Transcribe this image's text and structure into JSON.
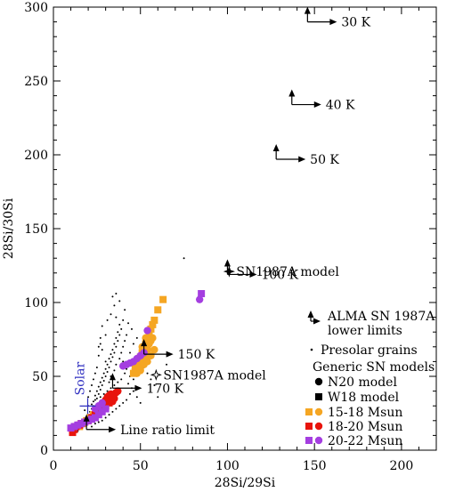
{
  "chart_data": {
    "type": "scatter",
    "xlabel": "28Si/29Si",
    "ylabel": "28Si/30Si",
    "xlim": [
      0,
      220
    ],
    "ylim": [
      0,
      300
    ],
    "xticks": [
      0,
      50,
      100,
      150,
      200
    ],
    "yticks": [
      0,
      50,
      100,
      150,
      200,
      250,
      300
    ],
    "grid": false,
    "legend_position": "lower-right",
    "colors": {
      "orange": "#f5a623",
      "red": "#e8140c",
      "purple": "#a43ee0",
      "solar": "#3030c0",
      "black": "#000000"
    },
    "lower_limits": [
      {
        "label": "30 K",
        "x": 146,
        "y": 290
      },
      {
        "label": "40 K",
        "x": 137,
        "y": 234
      },
      {
        "label": "50 K",
        "x": 128,
        "y": 197
      },
      {
        "label": "100 K",
        "x": 100,
        "y": 119
      },
      {
        "label": "150 K",
        "x": 52,
        "y": 65
      },
      {
        "label": "170 K",
        "x": 34,
        "y": 42
      },
      {
        "label": "Line ratio limit",
        "x": 19,
        "y": 14
      }
    ],
    "sn1987a_models": [
      {
        "label": "SN1987A model",
        "x": 101,
        "y": 121
      },
      {
        "label": "SN1987A model",
        "x": 59,
        "y": 51
      }
    ],
    "solar": {
      "label": "Solar",
      "x": 19.7,
      "y": 29.9
    },
    "presolar_grains": [
      [
        14,
        13
      ],
      [
        16,
        16
      ],
      [
        18,
        17
      ],
      [
        19,
        20
      ],
      [
        20,
        22
      ],
      [
        21,
        24
      ],
      [
        21,
        26
      ],
      [
        22,
        28
      ],
      [
        20,
        30
      ],
      [
        22,
        31
      ],
      [
        23,
        33
      ],
      [
        24,
        34
      ],
      [
        25,
        35
      ],
      [
        24,
        37
      ],
      [
        26,
        38
      ],
      [
        25,
        40
      ],
      [
        27,
        41
      ],
      [
        26,
        43
      ],
      [
        28,
        44
      ],
      [
        27,
        46
      ],
      [
        29,
        47
      ],
      [
        28,
        49
      ],
      [
        30,
        50
      ],
      [
        29,
        52
      ],
      [
        31,
        53
      ],
      [
        30,
        55
      ],
      [
        32,
        56
      ],
      [
        31,
        58
      ],
      [
        33,
        60
      ],
      [
        32,
        62
      ],
      [
        34,
        63
      ],
      [
        33,
        65
      ],
      [
        35,
        66
      ],
      [
        34,
        68
      ],
      [
        36,
        70
      ],
      [
        35,
        72
      ],
      [
        37,
        74
      ],
      [
        36,
        76
      ],
      [
        38,
        78
      ],
      [
        37,
        80
      ],
      [
        39,
        82
      ],
      [
        38,
        85
      ],
      [
        40,
        88
      ],
      [
        36,
        90
      ],
      [
        33,
        92
      ],
      [
        41,
        95
      ],
      [
        35,
        98
      ],
      [
        38,
        101
      ],
      [
        34,
        104
      ],
      [
        36,
        106
      ],
      [
        30,
        60
      ],
      [
        28,
        68
      ],
      [
        27,
        72
      ],
      [
        26,
        64
      ],
      [
        25,
        56
      ],
      [
        24,
        52
      ],
      [
        23,
        48
      ],
      [
        22,
        44
      ],
      [
        21,
        40
      ],
      [
        20,
        36
      ],
      [
        32,
        46
      ],
      [
        33,
        50
      ],
      [
        35,
        54
      ],
      [
        36,
        58
      ],
      [
        38,
        62
      ],
      [
        39,
        66
      ],
      [
        40,
        70
      ],
      [
        41,
        74
      ],
      [
        42,
        78
      ],
      [
        40,
        60
      ],
      [
        42,
        55
      ],
      [
        44,
        50
      ],
      [
        43,
        45
      ],
      [
        45,
        42
      ],
      [
        46,
        48
      ],
      [
        44,
        38
      ],
      [
        42,
        34
      ],
      [
        40,
        32
      ],
      [
        38,
        30
      ],
      [
        36,
        28
      ],
      [
        34,
        26
      ],
      [
        32,
        24
      ],
      [
        30,
        22
      ],
      [
        28,
        20
      ],
      [
        26,
        19
      ],
      [
        24,
        18
      ],
      [
        22,
        16
      ],
      [
        27,
        36
      ],
      [
        29,
        38
      ],
      [
        31,
        40
      ],
      [
        33,
        42
      ],
      [
        35,
        44
      ],
      [
        37,
        46
      ],
      [
        39,
        48
      ],
      [
        41,
        52
      ],
      [
        30,
        78
      ],
      [
        28,
        84
      ],
      [
        31,
        88
      ],
      [
        27,
        76
      ],
      [
        26,
        70
      ],
      [
        47,
        58
      ],
      [
        48,
        62
      ],
      [
        50,
        65
      ],
      [
        52,
        56
      ],
      [
        54,
        52
      ],
      [
        56,
        48
      ],
      [
        58,
        44
      ],
      [
        46,
        40
      ],
      [
        48,
        36
      ],
      [
        50,
        32
      ],
      [
        44,
        66
      ],
      [
        46,
        72
      ],
      [
        48,
        76
      ],
      [
        45,
        82
      ],
      [
        43,
        86
      ],
      [
        75,
        130
      ],
      [
        65,
        58
      ],
      [
        60,
        36
      ],
      [
        18,
        27
      ],
      [
        23,
        30
      ]
    ],
    "series": [
      {
        "name": "15-18 Msun",
        "color": "#f5a623",
        "points_n20": [
          [
            47,
            55
          ],
          [
            48,
            57
          ],
          [
            49,
            60
          ],
          [
            50,
            62
          ],
          [
            51,
            64
          ],
          [
            52,
            66
          ],
          [
            53,
            68
          ],
          [
            54,
            70
          ],
          [
            55,
            72
          ],
          [
            56,
            74
          ],
          [
            57,
            76
          ],
          [
            48,
            52
          ],
          [
            50,
            54
          ],
          [
            52,
            58
          ],
          [
            54,
            60
          ],
          [
            56,
            64
          ],
          [
            58,
            68
          ],
          [
            55,
            78
          ],
          [
            53,
            76
          ],
          [
            51,
            70
          ]
        ],
        "points_w18": [
          [
            46,
            52
          ],
          [
            47,
            56
          ],
          [
            48,
            58
          ],
          [
            49,
            61
          ],
          [
            50,
            63
          ],
          [
            51,
            66
          ],
          [
            52,
            68
          ],
          [
            53,
            72
          ],
          [
            54,
            75
          ],
          [
            55,
            78
          ],
          [
            56,
            82
          ],
          [
            57,
            85
          ],
          [
            58,
            88
          ],
          [
            60,
            95
          ],
          [
            63,
            102
          ],
          [
            49,
            54
          ],
          [
            50,
            57
          ],
          [
            51,
            59
          ],
          [
            52,
            62
          ],
          [
            53,
            64
          ],
          [
            54,
            67
          ],
          [
            15,
            16
          ],
          [
            17,
            18
          ],
          [
            19,
            20
          ],
          [
            21,
            22
          ],
          [
            23,
            24
          ],
          [
            25,
            26
          ],
          [
            27,
            28
          ],
          [
            29,
            32
          ],
          [
            31,
            34
          ]
        ]
      },
      {
        "name": "18-20 Msun",
        "color": "#e8140c",
        "points_n20": [
          [
            30,
            34
          ],
          [
            31,
            36
          ],
          [
            32,
            37
          ],
          [
            33,
            38
          ],
          [
            34,
            33
          ],
          [
            35,
            35
          ],
          [
            36,
            39
          ],
          [
            37,
            40
          ]
        ],
        "points_w18": [
          [
            11,
            12
          ],
          [
            12,
            14
          ],
          [
            13,
            16
          ],
          [
            15,
            17
          ],
          [
            16,
            18
          ],
          [
            18,
            19
          ],
          [
            20,
            20
          ],
          [
            22,
            22
          ],
          [
            24,
            24
          ],
          [
            26,
            26
          ],
          [
            28,
            28
          ],
          [
            30,
            30
          ],
          [
            32,
            32
          ]
        ]
      },
      {
        "name": "20-22 Msun",
        "color": "#a43ee0",
        "points_n20": [
          [
            40,
            57
          ],
          [
            42,
            58
          ],
          [
            44,
            59
          ],
          [
            46,
            60
          ],
          [
            48,
            62
          ],
          [
            50,
            64
          ],
          [
            52,
            66
          ],
          [
            54,
            81
          ],
          [
            84,
            102
          ],
          [
            24,
            28
          ],
          [
            26,
            30
          ],
          [
            28,
            32
          ]
        ],
        "points_w18": [
          [
            10,
            15
          ],
          [
            12,
            16
          ],
          [
            14,
            17
          ],
          [
            16,
            18
          ],
          [
            18,
            19
          ],
          [
            20,
            20
          ],
          [
            22,
            21
          ],
          [
            24,
            22
          ],
          [
            26,
            24
          ],
          [
            28,
            26
          ],
          [
            30,
            28
          ],
          [
            85,
            106
          ]
        ]
      }
    ],
    "legend": {
      "alma": "ALMA SN 1987A",
      "alma2": "lower limits",
      "presolar": "Presolar grains",
      "generic": "Generic SN models",
      "n20": "N20 model",
      "w18": "W18 model",
      "s1": "15-18 Msun",
      "s2": "18-20 Msun",
      "s3": "20-22 Msun"
    }
  }
}
